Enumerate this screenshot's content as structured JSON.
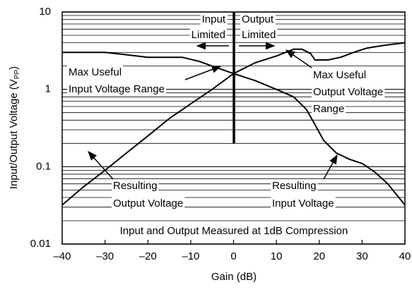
{
  "chart_data": {
    "type": "line",
    "xlabel": "Gain (dB)",
    "ylabel": [
      "Input/Output Voltage (V",
      "PP",
      ")"
    ],
    "xlim": [
      -40,
      40
    ],
    "xticks": [
      {
        "value": -40,
        "label": "–40"
      },
      {
        "value": -30,
        "label": "–30"
      },
      {
        "value": -20,
        "label": "–20"
      },
      {
        "value": -10,
        "label": "–10"
      },
      0,
      10,
      20,
      30,
      40
    ],
    "ylim": [
      0.01,
      10
    ],
    "yticks": [
      0.01,
      0.1,
      1,
      10
    ],
    "log_y": true,
    "minor_grid": true,
    "series": [
      {
        "color": "#000000",
        "x": [
          -40,
          -30,
          -25,
          -20,
          -12,
          -8,
          -5,
          0,
          5,
          10,
          14,
          17,
          19,
          21,
          24,
          27,
          30,
          33,
          36,
          40
        ],
        "values": [
          3.0,
          3.0,
          2.8,
          2.6,
          2.6,
          2.3,
          2.0,
          1.6,
          1.3,
          1.0,
          0.8,
          0.55,
          0.35,
          0.22,
          0.15,
          0.125,
          0.11,
          0.085,
          0.06,
          0.032
        ]
      },
      {
        "color": "#000000",
        "x": [
          -40,
          -35,
          -30,
          -25,
          -20,
          -15,
          -10,
          -5,
          0,
          5,
          10,
          14,
          16,
          18,
          19,
          22,
          25,
          28,
          31,
          35,
          40
        ],
        "values": [
          0.032,
          0.055,
          0.09,
          0.15,
          0.25,
          0.42,
          0.65,
          1.0,
          1.6,
          2.2,
          2.7,
          3.3,
          3.3,
          2.9,
          2.4,
          2.4,
          2.6,
          3.0,
          3.4,
          3.7,
          4.0
        ]
      }
    ],
    "annotations": {
      "input_limited": [
        "Input",
        "Limited"
      ],
      "output_limited": [
        "Output",
        "Limited"
      ],
      "max_input": [
        "Max Useful",
        "Input Voltage Range"
      ],
      "max_output": [
        "Max Useful",
        "Output Voltage",
        "Range"
      ],
      "resulting_output": [
        "Resulting",
        "Output Voltage"
      ],
      "resulting_input": [
        "Resulting",
        "Input Voltage"
      ],
      "note": "Input and Output Measured at 1dB Compression"
    }
  }
}
